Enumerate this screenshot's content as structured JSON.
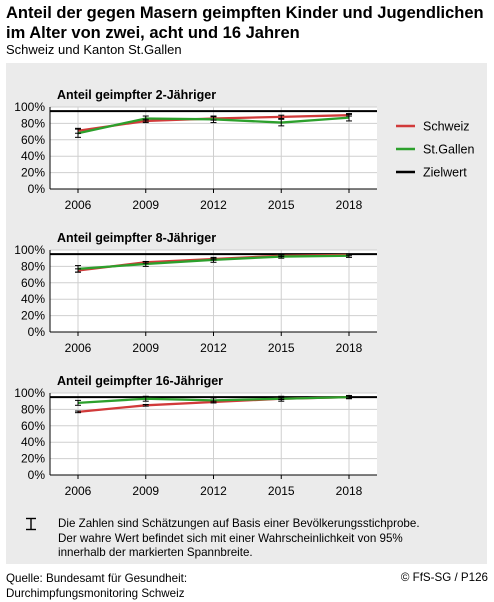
{
  "header": {
    "title": "Anteil der gegen Masern geimpften Kinder und Jugendlichen im Alter von zwei, acht und 16 Jahren",
    "subtitle": "Schweiz und Kanton St.Gallen"
  },
  "legend": {
    "items": [
      {
        "label": "Schweiz",
        "color": "#d13a3a"
      },
      {
        "label": "St.Gallen",
        "color": "#2ca02c"
      },
      {
        "label": "Zielwert",
        "color": "#000000"
      }
    ]
  },
  "footnote": {
    "icon": "error-bar-icon",
    "text": "Die Zahlen sind Schätzungen auf Basis einer Bevölkerungsstichprobe. Der wahre Wert befindet sich mit einer Wahrscheinlichkeit von 95% innerhalb der markierten Spannbreite."
  },
  "footer": {
    "source_line1": "Quelle: Bundesamt für Gesundheit:",
    "source_line2": "Durchimpfungsmonitoring Schweiz",
    "copyright": "© FfS-SG / P126"
  },
  "chart_data": [
    {
      "type": "line",
      "title": "Anteil geimpfter 2-Jähriger",
      "x": [
        2006,
        2009,
        2012,
        2015,
        2018
      ],
      "xticks": [
        "2006",
        "2009",
        "2012",
        "2015",
        "2018"
      ],
      "ylim": [
        0,
        100
      ],
      "yticks": [
        "0%",
        "20%",
        "40%",
        "60%",
        "80%",
        "100%"
      ],
      "target": 95,
      "series": [
        {
          "name": "Schweiz",
          "values": [
            71,
            83,
            86,
            88,
            90
          ],
          "ci": [
            [
              68,
              74
            ],
            [
              81,
              85
            ],
            [
              84,
              88
            ],
            [
              86,
              90
            ],
            [
              89,
              92
            ]
          ]
        },
        {
          "name": "St.Gallen",
          "values": [
            68,
            86,
            85,
            81,
            87
          ],
          "ci": [
            [
              63,
              73
            ],
            [
              83,
              89
            ],
            [
              81,
              89
            ],
            [
              77,
              85
            ],
            [
              83,
              91
            ]
          ]
        }
      ]
    },
    {
      "type": "line",
      "title": "Anteil geimpfter 8-Jähriger",
      "x": [
        2006,
        2009,
        2012,
        2015,
        2018
      ],
      "xticks": [
        "2006",
        "2009",
        "2012",
        "2015",
        "2018"
      ],
      "ylim": [
        0,
        100
      ],
      "yticks": [
        "0%",
        "20%",
        "40%",
        "60%",
        "80%",
        "100%"
      ],
      "target": 95,
      "series": [
        {
          "name": "Schweiz",
          "values": [
            75,
            85,
            89,
            93,
            94
          ],
          "ci": [
            [
              73,
              77
            ],
            [
              84,
              86
            ],
            [
              88,
              90
            ],
            [
              92,
              94
            ],
            [
              93,
              95
            ]
          ]
        },
        {
          "name": "St.Gallen",
          "values": [
            77,
            83,
            88,
            92,
            93
          ],
          "ci": [
            [
              73,
              81
            ],
            [
              80,
              86
            ],
            [
              85,
              91
            ],
            [
              90,
              94
            ],
            [
              91,
              95
            ]
          ]
        }
      ]
    },
    {
      "type": "line",
      "title": "Anteil geimpfter 16-Jähriger",
      "x": [
        2006,
        2009,
        2012,
        2015,
        2018
      ],
      "xticks": [
        "2006",
        "2009",
        "2012",
        "2015",
        "2018"
      ],
      "ylim": [
        0,
        100
      ],
      "yticks": [
        "0%",
        "20%",
        "40%",
        "60%",
        "80%",
        "100%"
      ],
      "target": 95,
      "series": [
        {
          "name": "Schweiz",
          "values": [
            77,
            85,
            89,
            93,
            95
          ],
          "ci": [
            [
              76,
              78
            ],
            [
              84,
              86
            ],
            [
              88,
              90
            ],
            [
              92,
              94
            ],
            [
              94,
              96
            ]
          ]
        },
        {
          "name": "St.Gallen",
          "values": [
            88,
            93,
            91,
            93,
            95
          ],
          "ci": [
            [
              85,
              91
            ],
            [
              90,
              96
            ],
            [
              88,
              94
            ],
            [
              90,
              96
            ],
            [
              93,
              97
            ]
          ]
        }
      ]
    }
  ]
}
